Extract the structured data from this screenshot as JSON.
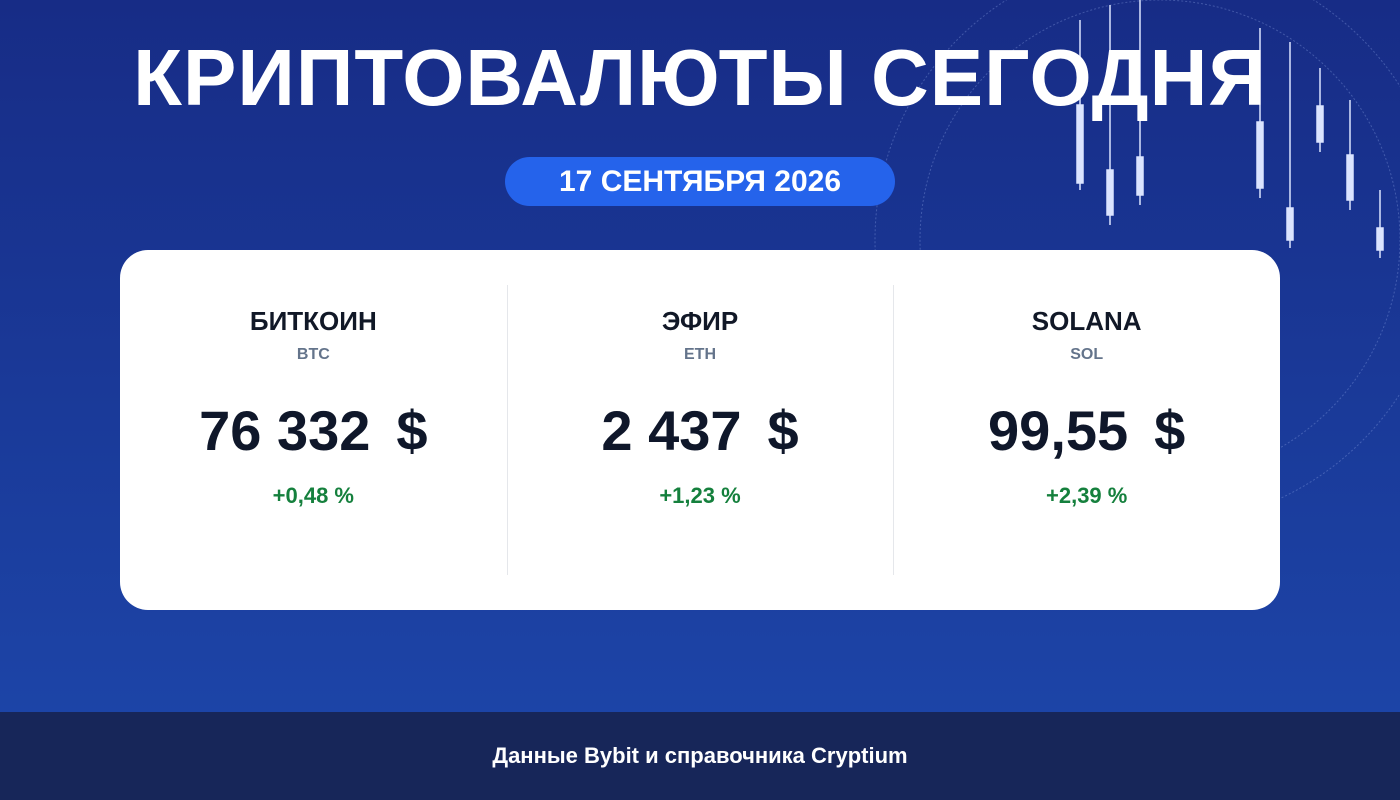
{
  "header": {
    "title": "КРИПТОВАЛЮТЫ СЕГОДНЯ",
    "date": "17 СЕНТЯБРЯ 2026"
  },
  "cards": [
    {
      "name": "БИТКОИН",
      "ticker": "BTC",
      "price": "76 332",
      "currency": "$",
      "change": "+0,48 %"
    },
    {
      "name": "ЭФИР",
      "ticker": "ETH",
      "price": "2 437",
      "currency": "$",
      "change": "+1,23 %"
    },
    {
      "name": "SOLANA",
      "ticker": "SOL",
      "price": "99,55",
      "currency": "$",
      "change": "+2,39 %"
    }
  ],
  "footer": {
    "source": "Данные Bybit и справочника Cryptium"
  }
}
